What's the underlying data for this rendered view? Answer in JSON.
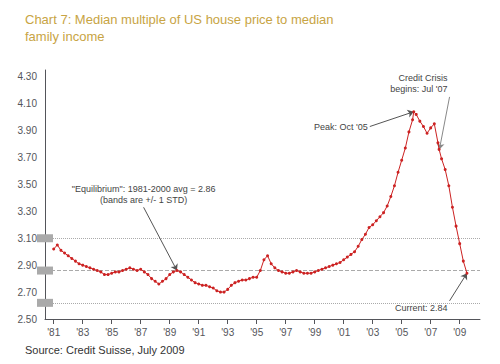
{
  "chart_data": {
    "type": "line",
    "title": "Chart 7: Median multiple of US house price to median\nfamily income",
    "title_color": "#c8a444",
    "source": "Source: Credit Suisse, July 2009",
    "color": "#cc2222",
    "marker": "circle",
    "grid": false,
    "xlim": [
      1980.4,
      2010.4
    ],
    "xticks": [
      {
        "value": 1981,
        "label": "'81"
      },
      {
        "value": 1983,
        "label": "'83"
      },
      {
        "value": 1985,
        "label": "'85"
      },
      {
        "value": 1987,
        "label": "'87"
      },
      {
        "value": 1989,
        "label": "'89"
      },
      {
        "value": 1991,
        "label": "'91"
      },
      {
        "value": 1993,
        "label": "'93"
      },
      {
        "value": 1995,
        "label": "'95"
      },
      {
        "value": 1997,
        "label": "'97"
      },
      {
        "value": 1999,
        "label": "'99"
      },
      {
        "value": 2001,
        "label": "'01"
      },
      {
        "value": 2003,
        "label": "'03"
      },
      {
        "value": 2005,
        "label": "'05"
      },
      {
        "value": 2007,
        "label": "'07"
      },
      {
        "value": 2009,
        "label": "'09"
      }
    ],
    "ylim": [
      2.5,
      4.35
    ],
    "yticks": [
      {
        "value": 2.5,
        "label": "2.50"
      },
      {
        "value": 2.7,
        "label": "2.70"
      },
      {
        "value": 2.9,
        "label": "2.90"
      },
      {
        "value": 3.1,
        "label": "3.10"
      },
      {
        "value": 3.3,
        "label": "3.30"
      },
      {
        "value": 3.5,
        "label": "3.50"
      },
      {
        "value": 3.7,
        "label": "3.70"
      },
      {
        "value": 3.9,
        "label": "3.90"
      },
      {
        "value": 4.1,
        "label": "4.10"
      },
      {
        "value": 4.3,
        "label": "4.30"
      }
    ],
    "reference_lines": [
      {
        "y": 2.86,
        "line_style": "dashed",
        "color": "#aaaaaa"
      },
      {
        "y": 3.1,
        "line_style": "dotted",
        "color": "#aaaaaa"
      },
      {
        "y": 2.62,
        "line_style": "dotted",
        "color": "#aaaaaa"
      }
    ],
    "annotations": [
      {
        "text": "\"Equilibrium\": 1981-2000 avg = 2.86\n(bands are +/- 1 STD)",
        "xy": [
          1989.5,
          2.86
        ],
        "xytext": [
          1987.2,
          3.33
        ],
        "color": "#555555"
      },
      {
        "text": "Peak: Oct '05",
        "xy": [
          2005.83,
          4.04
        ],
        "xytext": [
          2002.8,
          3.93
        ],
        "color": "#555555"
      },
      {
        "text": "Credit Crisis\nbegins: Jul '07",
        "xy": [
          2007.6,
          3.76
        ],
        "xytext": [
          2008.3,
          4.15
        ],
        "color": "#888888"
      },
      {
        "text": "Current: 2.84",
        "xy": [
          2009.5,
          2.84
        ],
        "xytext": [
          2008.3,
          2.635
        ],
        "color": "#555555"
      }
    ],
    "x": [
      1981.0,
      1981.25,
      1981.5,
      1981.75,
      1982.0,
      1982.25,
      1982.5,
      1982.75,
      1983.0,
      1983.25,
      1983.5,
      1983.75,
      1984.0,
      1984.25,
      1984.5,
      1984.75,
      1985.0,
      1985.25,
      1985.5,
      1985.75,
      1986.0,
      1986.25,
      1986.5,
      1986.75,
      1987.0,
      1987.25,
      1987.5,
      1987.75,
      1988.0,
      1988.25,
      1988.5,
      1988.75,
      1989.0,
      1989.25,
      1989.5,
      1989.75,
      1990.0,
      1990.25,
      1990.5,
      1990.75,
      1991.0,
      1991.25,
      1991.5,
      1991.75,
      1992.0,
      1992.25,
      1992.5,
      1992.75,
      1993.0,
      1993.25,
      1993.5,
      1993.75,
      1994.0,
      1994.25,
      1994.5,
      1994.75,
      1995.0,
      1995.25,
      1995.5,
      1995.75,
      1996.0,
      1996.25,
      1996.5,
      1996.75,
      1997.0,
      1997.25,
      1997.5,
      1997.75,
      1998.0,
      1998.25,
      1998.5,
      1998.75,
      1999.0,
      1999.25,
      1999.5,
      1999.75,
      2000.0,
      2000.25,
      2000.5,
      2000.75,
      2001.0,
      2001.25,
      2001.5,
      2001.75,
      2002.0,
      2002.25,
      2002.5,
      2002.75,
      2003.0,
      2003.25,
      2003.5,
      2003.75,
      2004.0,
      2004.25,
      2004.5,
      2004.75,
      2005.0,
      2005.25,
      2005.5,
      2005.75,
      2005.83,
      2006.0,
      2006.25,
      2006.5,
      2006.75,
      2007.0,
      2007.25,
      2007.5,
      2007.58,
      2007.75,
      2008.0,
      2008.25,
      2008.5,
      2008.75,
      2009.0,
      2009.25,
      2009.5
    ],
    "values": [
      3.02,
      3.05,
      3.01,
      2.99,
      2.97,
      2.95,
      2.93,
      2.91,
      2.9,
      2.89,
      2.88,
      2.87,
      2.86,
      2.85,
      2.83,
      2.83,
      2.84,
      2.85,
      2.85,
      2.86,
      2.87,
      2.88,
      2.87,
      2.86,
      2.87,
      2.85,
      2.83,
      2.8,
      2.78,
      2.76,
      2.78,
      2.8,
      2.83,
      2.85,
      2.86,
      2.85,
      2.83,
      2.81,
      2.79,
      2.77,
      2.76,
      2.75,
      2.75,
      2.74,
      2.73,
      2.71,
      2.7,
      2.7,
      2.72,
      2.75,
      2.77,
      2.78,
      2.79,
      2.79,
      2.8,
      2.81,
      2.81,
      2.86,
      2.94,
      2.97,
      2.91,
      2.88,
      2.86,
      2.85,
      2.84,
      2.84,
      2.85,
      2.86,
      2.85,
      2.84,
      2.84,
      2.84,
      2.85,
      2.86,
      2.87,
      2.88,
      2.89,
      2.9,
      2.91,
      2.92,
      2.94,
      2.96,
      2.98,
      3.0,
      3.04,
      3.09,
      3.13,
      3.18,
      3.2,
      3.23,
      3.26,
      3.29,
      3.34,
      3.41,
      3.49,
      3.59,
      3.68,
      3.77,
      3.89,
      3.98,
      4.04,
      4.02,
      3.97,
      3.93,
      3.88,
      3.92,
      3.95,
      3.81,
      3.76,
      3.69,
      3.61,
      3.49,
      3.33,
      3.19,
      3.06,
      2.93,
      2.84
    ]
  }
}
